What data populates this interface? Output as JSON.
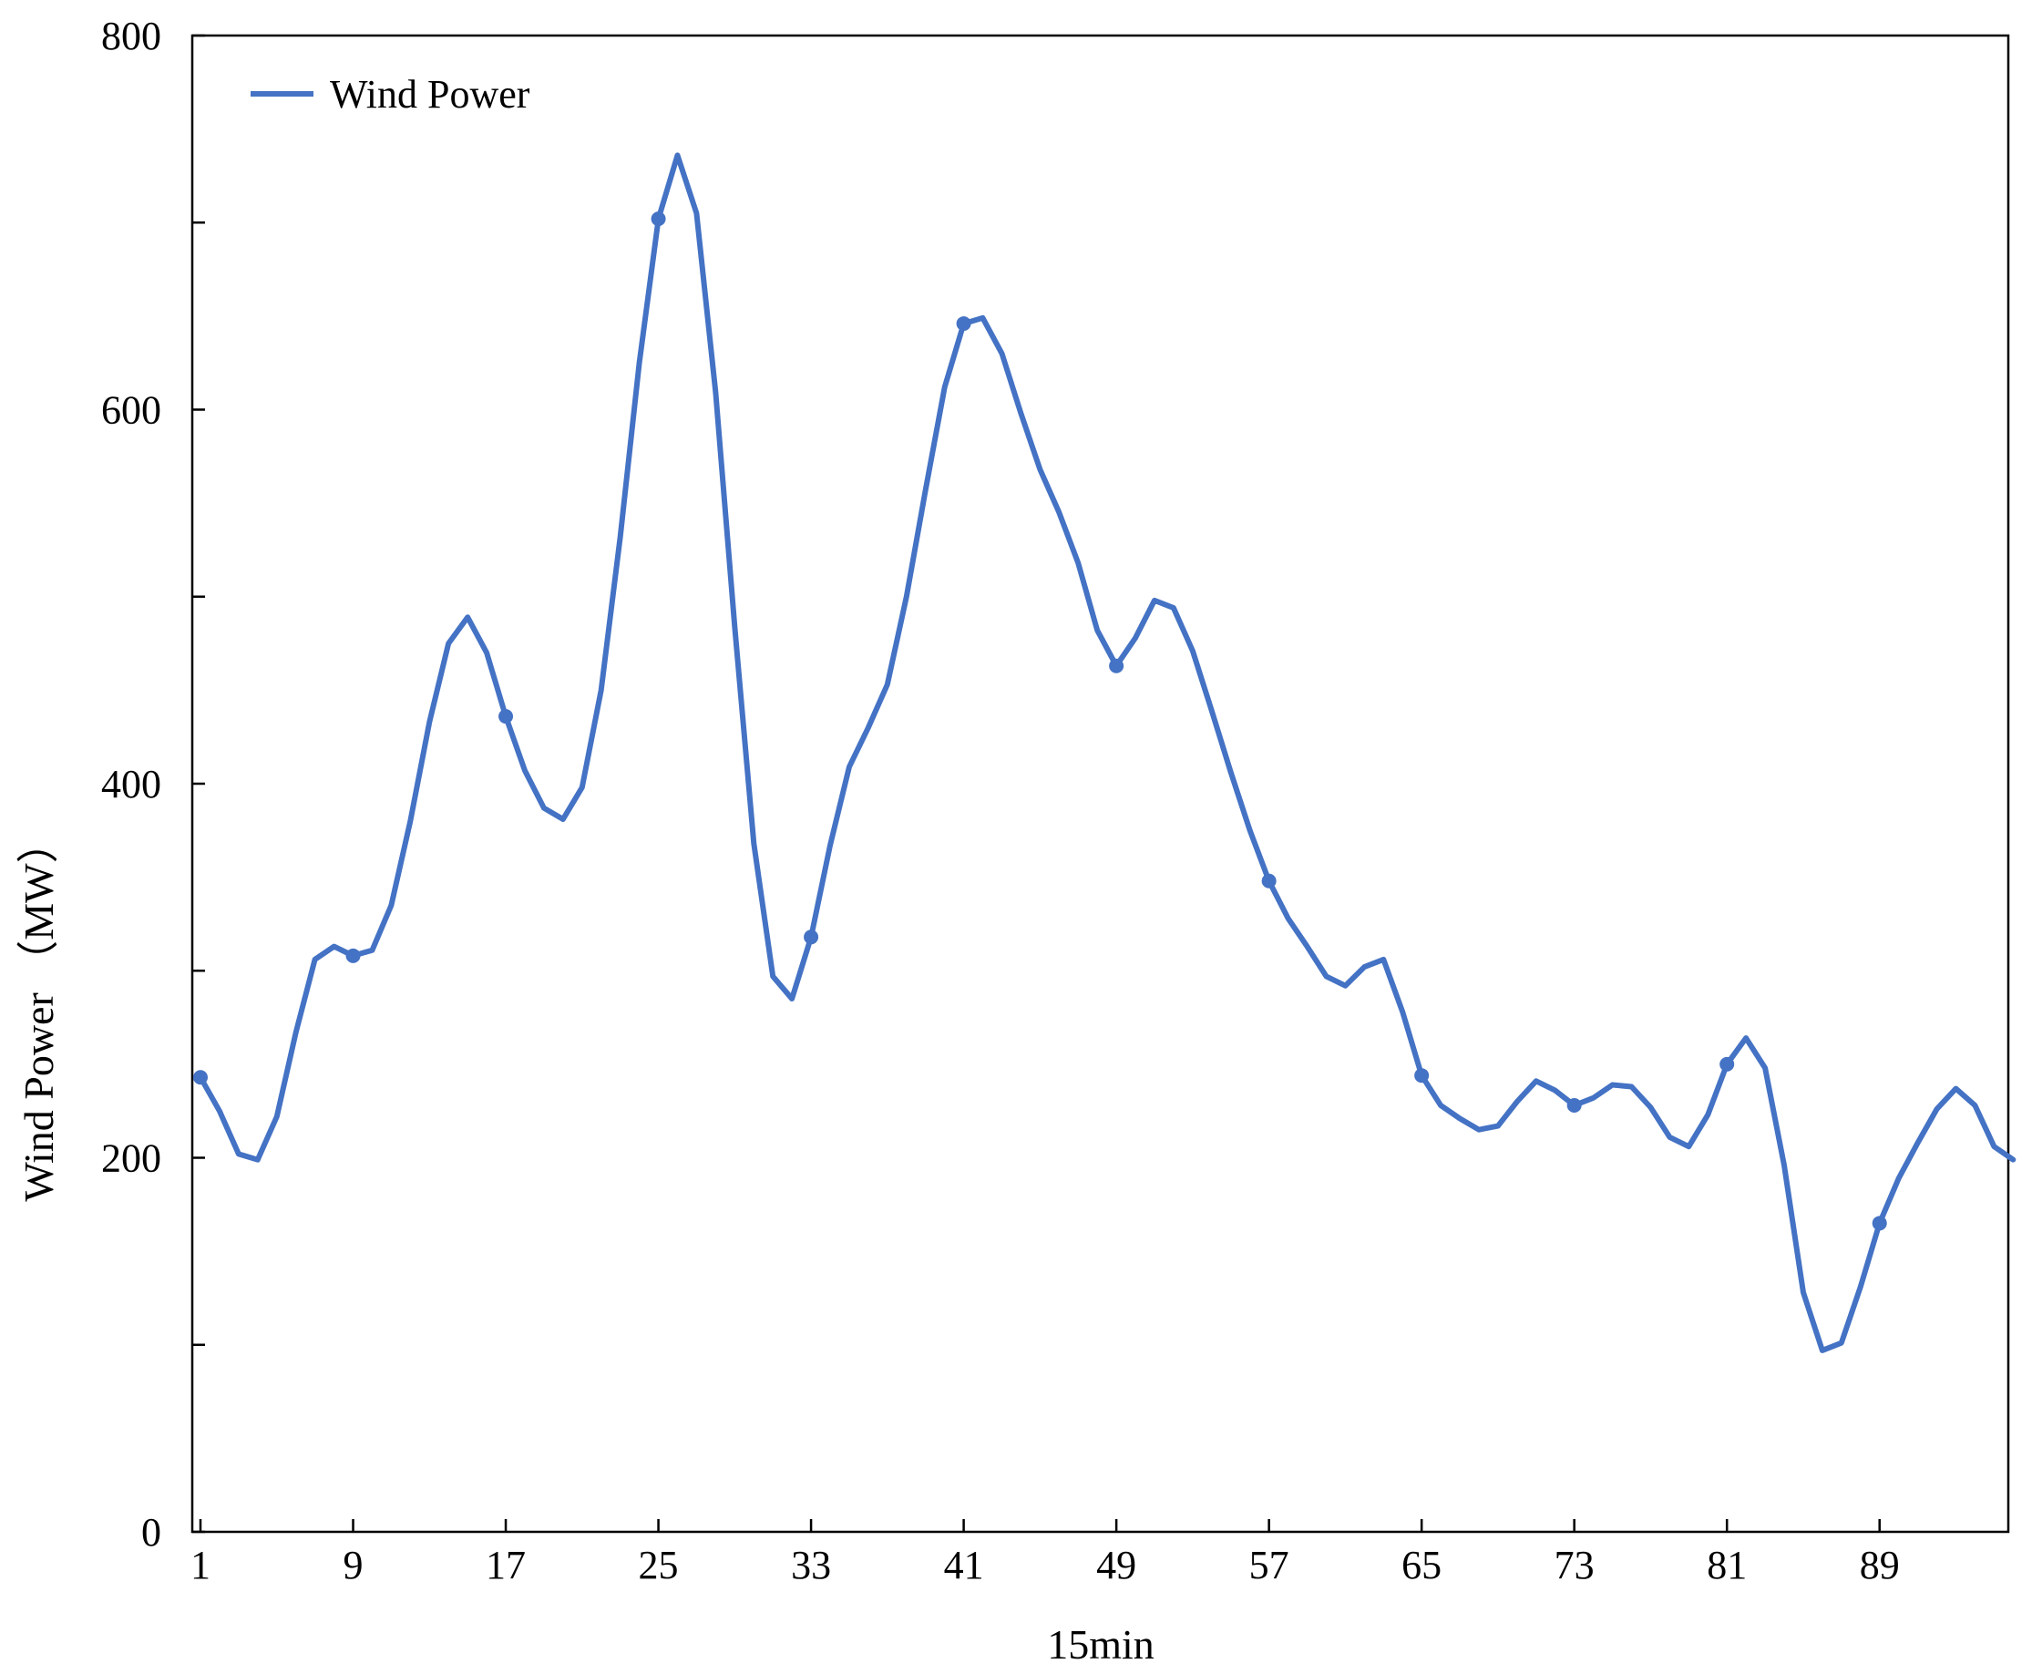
{
  "chart_data": {
    "type": "line",
    "xlabel": "15min",
    "ylabel": "Wind Power （MW）",
    "xlim": [
      1,
      96
    ],
    "ylim": [
      0,
      800
    ],
    "y_ticks": [
      0,
      200,
      400,
      600,
      800
    ],
    "y_tick_labels": [
      "0",
      "200",
      "400",
      "600",
      "800"
    ],
    "y_minor_ticks": [
      100,
      300,
      500,
      700
    ],
    "x_ticks": [
      1,
      9,
      17,
      25,
      33,
      41,
      49,
      57,
      65,
      73,
      81,
      89
    ],
    "x_tick_labels": [
      "1",
      "9",
      "17",
      "25",
      "33",
      "41",
      "49",
      "57",
      "65",
      "73",
      "81",
      "89"
    ],
    "legend_position": "top-left",
    "grid": false,
    "series": [
      {
        "name": "Wind Power",
        "color": "#4472C4",
        "marker_every": 8,
        "x": [
          1,
          2,
          3,
          4,
          5,
          6,
          7,
          8,
          9,
          10,
          11,
          12,
          13,
          14,
          15,
          16,
          17,
          18,
          19,
          20,
          21,
          22,
          23,
          24,
          25,
          26,
          27,
          28,
          29,
          30,
          31,
          32,
          33,
          34,
          35,
          36,
          37,
          38,
          39,
          40,
          41,
          42,
          43,
          44,
          45,
          46,
          47,
          48,
          49,
          50,
          51,
          52,
          53,
          54,
          55,
          56,
          57,
          58,
          59,
          60,
          61,
          62,
          63,
          64,
          65,
          66,
          67,
          68,
          69,
          70,
          71,
          72,
          73,
          74,
          75,
          76,
          77,
          78,
          79,
          80,
          81,
          82,
          83,
          84,
          85,
          86,
          87,
          88,
          89,
          90,
          91,
          92,
          93,
          94,
          95,
          96
        ],
        "values": [
          243,
          225,
          202,
          199,
          222,
          267,
          306,
          313,
          308,
          311,
          335,
          380,
          433,
          475,
          489,
          470,
          436,
          407,
          387,
          381,
          398,
          450,
          532,
          625,
          702,
          736,
          705,
          609,
          484,
          368,
          297,
          285,
          318,
          367,
          409,
          430,
          453,
          500,
          557,
          612,
          646,
          649,
          630,
          598,
          568,
          545,
          518,
          482,
          463,
          478,
          498,
          494,
          471,
          439,
          406,
          375,
          348,
          328,
          313,
          297,
          292,
          302,
          306,
          278,
          244,
          228,
          221,
          215,
          217,
          230,
          241,
          236,
          228,
          232,
          239,
          238,
          227,
          211,
          206,
          223,
          250,
          264,
          248,
          196,
          128,
          97,
          101,
          131,
          165,
          189,
          208,
          226,
          237,
          228,
          206,
          199
        ]
      }
    ]
  }
}
